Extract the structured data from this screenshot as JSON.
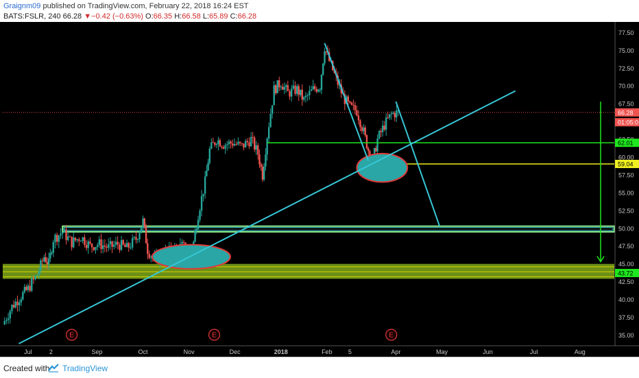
{
  "header": {
    "username": "Graignm09",
    "published": " published on TradingView.com, February 22, 2018 16:24 EST",
    "symbol": "BATS:FSLR, 240",
    "last": "66.28",
    "change": "−0.42 (−0.63%)",
    "o_label": "O:",
    "o_val": "66.35",
    "h_label": "H:",
    "h_val": "66.58",
    "l_label": "L:",
    "l_val": "65.89",
    "c_label": "C:",
    "c_val": "66.28"
  },
  "footer": {
    "created": "Created with",
    "brand": "TradingView"
  },
  "colors": {
    "up": "#26a69a",
    "down": "#ef5350",
    "trend": "#37c7d6",
    "green": "#1ee81e",
    "yellow": "#f0f020",
    "ellipse": "#2aa6a6"
  },
  "chart_data": {
    "type": "candlestick",
    "symbol": "BATS:FSLR",
    "interval": "240",
    "ylim": [
      33.5,
      78.6
    ],
    "y_ticks": [
      "77.50",
      "75.00",
      "72.50",
      "70.00",
      "67.50",
      "65.00",
      "62.50",
      "60.00",
      "57.50",
      "55.00",
      "52.50",
      "50.00",
      "47.50",
      "45.00",
      "42.50",
      "40.00",
      "37.50",
      "35.00"
    ],
    "x_ticks": [
      {
        "label": "Jul",
        "x": 0.55
      },
      {
        "label": "2",
        "x": 1.05
      },
      {
        "label": "Sep",
        "x": 2.05
      },
      {
        "label": "Oct",
        "x": 3.05
      },
      {
        "label": "Nov",
        "x": 4.05
      },
      {
        "label": "Dec",
        "x": 5.05
      },
      {
        "label": "2018",
        "x": 6.05
      },
      {
        "label": "Feb",
        "x": 7.05
      },
      {
        "label": "5",
        "x": 7.55
      },
      {
        "label": "Apr",
        "x": 8.55
      },
      {
        "label": "May",
        "x": 9.55
      },
      {
        "label": "Jun",
        "x": 10.55
      },
      {
        "label": "Jul",
        "x": 11.55
      },
      {
        "label": "Aug",
        "x": 12.55
      }
    ],
    "x_range": [
      0,
      13.3
    ],
    "price_path": [
      [
        0.0,
        36.5
      ],
      [
        0.2,
        39.0
      ],
      [
        0.4,
        40.5
      ],
      [
        0.55,
        41.5
      ],
      [
        0.75,
        43.5
      ],
      [
        0.9,
        46.0
      ],
      [
        1.0,
        45.0
      ],
      [
        1.1,
        48.5
      ],
      [
        1.3,
        49.5
      ],
      [
        1.5,
        48.0
      ],
      [
        1.7,
        48.8
      ],
      [
        1.9,
        47.5
      ],
      [
        2.1,
        47.8
      ],
      [
        2.3,
        47.3
      ],
      [
        2.5,
        47.8
      ],
      [
        2.7,
        47.2
      ],
      [
        2.9,
        48.5
      ],
      [
        3.05,
        51.0
      ],
      [
        3.15,
        47.0
      ],
      [
        3.3,
        45.5
      ],
      [
        3.5,
        46.5
      ],
      [
        3.7,
        47.0
      ],
      [
        3.9,
        47.5
      ],
      [
        4.05,
        47.0
      ],
      [
        4.15,
        48.0
      ],
      [
        4.25,
        52.0
      ],
      [
        4.4,
        56.5
      ],
      [
        4.5,
        61.0
      ],
      [
        4.65,
        62.5
      ],
      [
        4.8,
        61.8
      ],
      [
        5.0,
        62.0
      ],
      [
        5.2,
        61.5
      ],
      [
        5.4,
        62.5
      ],
      [
        5.55,
        60.5
      ],
      [
        5.65,
        57.5
      ],
      [
        5.75,
        63.0
      ],
      [
        5.9,
        69.5
      ],
      [
        6.05,
        70.5
      ],
      [
        6.2,
        69.0
      ],
      [
        6.4,
        69.5
      ],
      [
        6.55,
        68.0
      ],
      [
        6.75,
        69.5
      ],
      [
        6.9,
        70.0
      ],
      [
        7.0,
        75.5
      ],
      [
        7.1,
        73.5
      ],
      [
        7.25,
        71.0
      ],
      [
        7.4,
        68.5
      ],
      [
        7.55,
        67.0
      ],
      [
        7.7,
        66.5
      ],
      [
        7.85,
        63.5
      ],
      [
        7.95,
        61.0
      ],
      [
        8.05,
        59.5
      ],
      [
        8.15,
        62.5
      ],
      [
        8.3,
        64.5
      ],
      [
        8.45,
        66.0
      ],
      [
        8.6,
        66.3
      ]
    ],
    "lines": {
      "uptrend": [
        [
          0.35,
          33.8
        ],
        [
          11.15,
          69.3
        ]
      ],
      "down_1": [
        [
          7.0,
          76.0
        ],
        [
          7.95,
          59.5
        ]
      ],
      "down_2": [
        [
          8.55,
          67.8
        ],
        [
          9.5,
          50.3
        ]
      ],
      "h_green": 62.01,
      "h_yellow": 59.04,
      "h_last": 66.28,
      "zone_50": [
        49.5,
        50.3
      ],
      "zone_green_bottom": [
        42.9,
        45.0
      ],
      "arrow": [
        [
          14.3,
          67.8
        ],
        [
          14.3,
          45.3
        ]
      ]
    },
    "price_labels": [
      {
        "text": "66.28",
        "value": 66.28,
        "color": "#ef5350"
      },
      {
        "text": "01:05:0",
        "value": 64.9,
        "color": "#ef5350"
      },
      {
        "text": "62.01",
        "value": 62.01,
        "color": "#1ee81e"
      },
      {
        "text": "59.04",
        "value": 59.04,
        "color": "#f0f020"
      },
      {
        "text": "43.72",
        "value": 43.72,
        "color": "#1ee81e"
      }
    ],
    "earnings": [
      {
        "label": "E",
        "x": 1.5
      },
      {
        "label": "E",
        "x": 4.6
      },
      {
        "label": "E",
        "x": 8.45
      }
    ],
    "ellipses": [
      {
        "cx": 4.1,
        "cy": 46.0,
        "rx": 0.85,
        "ry": 1.7
      },
      {
        "cx": 8.25,
        "cy": 58.5,
        "rx": 0.55,
        "ry": 2.0
      }
    ]
  }
}
